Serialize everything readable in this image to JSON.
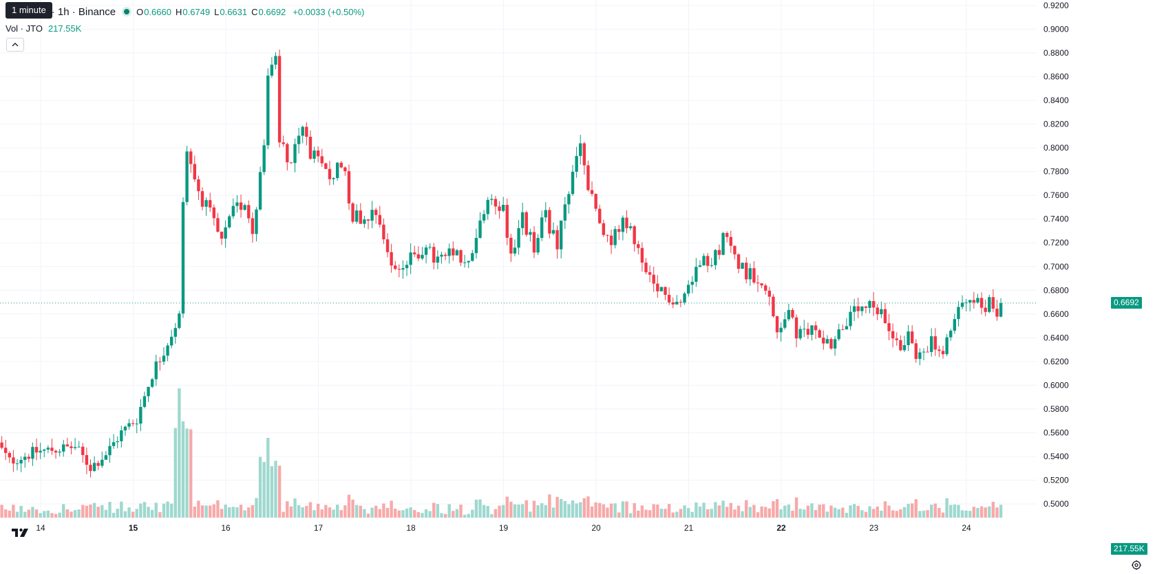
{
  "legend": {
    "tooltip": "1 minute",
    "title": "TetherUS · 1h · Binance",
    "ohlc": [
      {
        "label": "O",
        "value": "0.6660"
      },
      {
        "label": "H",
        "value": "0.6749"
      },
      {
        "label": "L",
        "value": "0.6631"
      },
      {
        "label": "C",
        "value": "0.6692"
      }
    ],
    "change": "+0.0033 (+0.50%)",
    "volume_label": "Vol · JTO",
    "volume_value": "217.55K"
  },
  "price_tags": {
    "last_price": "0.6692",
    "last_volume": "217.55K"
  },
  "colors": {
    "up": "#089981",
    "down": "#f23645",
    "volume_up": "#9fd8cf",
    "volume_down": "#f7a9a9",
    "grid": "#f0f3fa"
  },
  "icons": [
    "tradingview-logo-icon",
    "chevron-up-icon",
    "settings-icon"
  ],
  "chart_data": {
    "type": "candlestick",
    "interval": "1h",
    "x_ticks": [
      {
        "label": "14",
        "bold": false
      },
      {
        "label": "15",
        "bold": true
      },
      {
        "label": "16",
        "bold": false
      },
      {
        "label": "17",
        "bold": false
      },
      {
        "label": "18",
        "bold": false
      },
      {
        "label": "19",
        "bold": false
      },
      {
        "label": "20",
        "bold": false
      },
      {
        "label": "21",
        "bold": false
      },
      {
        "label": "22",
        "bold": true
      },
      {
        "label": "23",
        "bold": false
      },
      {
        "label": "24",
        "bold": false
      }
    ],
    "y_ticks": [
      "0.9200",
      "0.9000",
      "0.8800",
      "0.8600",
      "0.8400",
      "0.8200",
      "0.8000",
      "0.7800",
      "0.7600",
      "0.7400",
      "0.7200",
      "0.7000",
      "0.6800",
      "0.6600",
      "0.6400",
      "0.6200",
      "0.6000",
      "0.5800",
      "0.5600",
      "0.5400",
      "0.5200",
      "0.5000"
    ],
    "ylim": [
      0.496,
      0.924
    ],
    "last_close": 0.6692,
    "path_keypoints": [
      [
        0,
        0.55
      ],
      [
        3,
        0.536
      ],
      [
        10,
        0.544
      ],
      [
        20,
        0.548
      ],
      [
        24,
        0.531
      ],
      [
        28,
        0.542
      ],
      [
        32,
        0.56
      ],
      [
        36,
        0.572
      ],
      [
        40,
        0.61
      ],
      [
        43,
        0.63
      ],
      [
        47,
        0.658
      ],
      [
        48,
        0.76
      ],
      [
        49,
        0.795
      ],
      [
        52,
        0.765
      ],
      [
        56,
        0.735
      ],
      [
        58,
        0.72
      ],
      [
        61,
        0.745
      ],
      [
        64,
        0.756
      ],
      [
        66,
        0.73
      ],
      [
        67,
        0.755
      ],
      [
        69,
        0.8
      ],
      [
        70,
        0.86
      ],
      [
        72,
        0.87
      ],
      [
        73,
        0.805
      ],
      [
        76,
        0.79
      ],
      [
        79,
        0.815
      ],
      [
        82,
        0.79
      ],
      [
        86,
        0.775
      ],
      [
        89,
        0.79
      ],
      [
        92,
        0.745
      ],
      [
        94,
        0.74
      ],
      [
        98,
        0.75
      ],
      [
        102,
        0.7
      ],
      [
        105,
        0.7
      ],
      [
        110,
        0.715
      ],
      [
        114,
        0.705
      ],
      [
        118,
        0.71
      ],
      [
        122,
        0.7
      ],
      [
        125,
        0.74
      ],
      [
        128,
        0.755
      ],
      [
        131,
        0.75
      ],
      [
        133,
        0.71
      ],
      [
        136,
        0.74
      ],
      [
        139,
        0.715
      ],
      [
        142,
        0.745
      ],
      [
        145,
        0.715
      ],
      [
        147,
        0.75
      ],
      [
        150,
        0.79
      ],
      [
        151,
        0.805
      ],
      [
        153,
        0.765
      ],
      [
        156,
        0.735
      ],
      [
        158,
        0.72
      ],
      [
        162,
        0.735
      ],
      [
        165,
        0.725
      ],
      [
        167,
        0.7
      ],
      [
        170,
        0.68
      ],
      [
        174,
        0.675
      ],
      [
        177,
        0.67
      ],
      [
        180,
        0.69
      ],
      [
        183,
        0.715
      ],
      [
        185,
        0.7
      ],
      [
        188,
        0.725
      ],
      [
        191,
        0.71
      ],
      [
        194,
        0.695
      ],
      [
        198,
        0.69
      ],
      [
        200,
        0.67
      ],
      [
        202,
        0.645
      ],
      [
        205,
        0.665
      ],
      [
        207,
        0.64
      ],
      [
        211,
        0.648
      ],
      [
        214,
        0.64
      ],
      [
        216,
        0.635
      ],
      [
        219,
        0.65
      ],
      [
        222,
        0.66
      ],
      [
        226,
        0.665
      ],
      [
        229,
        0.658
      ],
      [
        232,
        0.645
      ],
      [
        234,
        0.63
      ],
      [
        236,
        0.645
      ],
      [
        238,
        0.62
      ],
      [
        240,
        0.632
      ],
      [
        242,
        0.636
      ],
      [
        245,
        0.625
      ],
      [
        248,
        0.655
      ],
      [
        251,
        0.675
      ],
      [
        253,
        0.676
      ],
      [
        255,
        0.66
      ],
      [
        257,
        0.672
      ],
      [
        259,
        0.664
      ],
      [
        260,
        0.669
      ]
    ],
    "volume_max": "peak on 15th",
    "grid": true
  }
}
